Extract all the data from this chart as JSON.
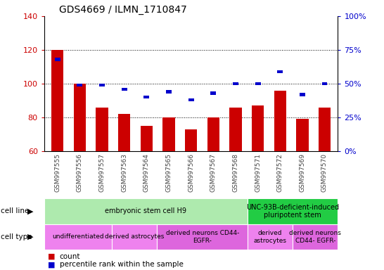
{
  "title": "GDS4669 / ILMN_1710847",
  "samples": [
    "GSM997555",
    "GSM997556",
    "GSM997557",
    "GSM997563",
    "GSM997564",
    "GSM997565",
    "GSM997566",
    "GSM997567",
    "GSM997568",
    "GSM997571",
    "GSM997572",
    "GSM997569",
    "GSM997570"
  ],
  "counts": [
    120,
    100,
    86,
    82,
    75,
    80,
    73,
    80,
    86,
    87,
    96,
    79,
    86
  ],
  "percentile_ranks": [
    68,
    49,
    49,
    46,
    40,
    44,
    38,
    43,
    50,
    50,
    59,
    42,
    50
  ],
  "ylim_left": [
    60,
    140
  ],
  "ylim_right": [
    0,
    100
  ],
  "yticks_left": [
    60,
    80,
    100,
    120,
    140
  ],
  "yticks_right": [
    0,
    25,
    50,
    75,
    100
  ],
  "bar_width": 0.55,
  "blue_bar_width": 0.25,
  "count_color": "#cc0000",
  "percentile_color": "#0000cc",
  "bg_color": "#ffffff",
  "xtick_bg": "#c8c8c8",
  "cell_line_groups": [
    {
      "label": "embryonic stem cell H9",
      "start": 0,
      "end": 9,
      "color": "#aeeaae"
    },
    {
      "label": "UNC-93B-deficient-induced\npluripotent stem",
      "start": 9,
      "end": 13,
      "color": "#22cc44"
    }
  ],
  "cell_type_groups": [
    {
      "label": "undifferentiated",
      "start": 0,
      "end": 3,
      "color": "#ee82ee"
    },
    {
      "label": "derived astrocytes",
      "start": 3,
      "end": 5,
      "color": "#ee82ee"
    },
    {
      "label": "derived neurons CD44-\nEGFR-",
      "start": 5,
      "end": 9,
      "color": "#dd66dd"
    },
    {
      "label": "derived\nastrocytes",
      "start": 9,
      "end": 11,
      "color": "#ee82ee"
    },
    {
      "label": "derived neurons\nCD44- EGFR-",
      "start": 11,
      "end": 13,
      "color": "#dd66dd"
    }
  ],
  "tick_label_color_left": "#cc0000",
  "tick_label_color_right": "#0000cc",
  "x_label_color": "#404040",
  "cell_line_row_label": "cell line",
  "cell_type_row_label": "cell type",
  "legend_count": "count",
  "legend_percentile": "percentile rank within the sample"
}
